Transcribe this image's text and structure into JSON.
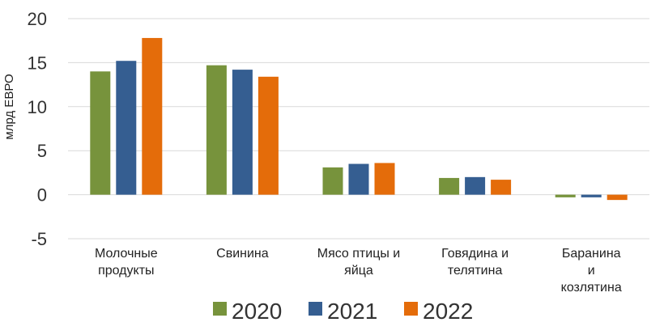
{
  "chart_data": {
    "type": "bar",
    "ylabel": "млрд ЕВРО",
    "ylim": [
      -5,
      20
    ],
    "yticks": [
      -5,
      0,
      5,
      10,
      15,
      20
    ],
    "grid": true,
    "legend_position": "bottom",
    "categories": [
      [
        "Молочные",
        "продукты"
      ],
      [
        "Свинина"
      ],
      [
        "Мясо птицы и",
        "яйца"
      ],
      [
        "Говядина и",
        "телятина"
      ],
      [
        "Баранина",
        "и",
        "козлятина"
      ]
    ],
    "series": [
      {
        "name": "2020",
        "color": "#77933c",
        "values": [
          14.0,
          14.7,
          3.1,
          1.9,
          -0.3
        ]
      },
      {
        "name": "2021",
        "color": "#355e91",
        "values": [
          15.2,
          14.2,
          3.5,
          2.0,
          -0.3
        ]
      },
      {
        "name": "2022",
        "color": "#e46c0a",
        "values": [
          17.8,
          13.4,
          3.6,
          1.7,
          -0.6
        ]
      }
    ]
  }
}
